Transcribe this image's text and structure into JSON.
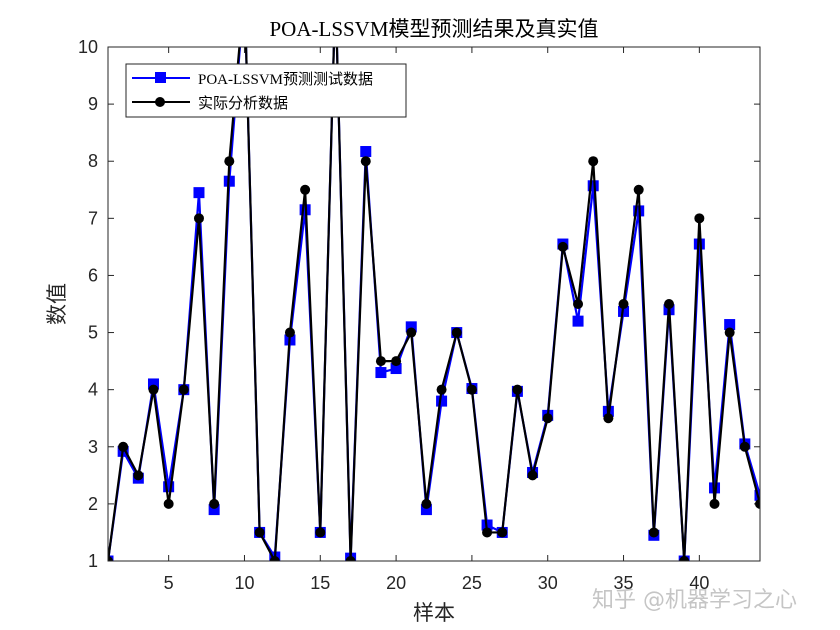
{
  "chart_data": {
    "type": "line",
    "title": "POA-LSSVM模型预测结果及真实值",
    "xlabel": "样本",
    "ylabel": "数值",
    "xlim": [
      1,
      44
    ],
    "ylim": [
      1,
      10
    ],
    "xticks": [
      5,
      10,
      15,
      20,
      25,
      30,
      35,
      40
    ],
    "yticks": [
      1,
      2,
      3,
      4,
      5,
      6,
      7,
      8,
      9,
      10
    ],
    "grid": false,
    "legend_position": "top-left",
    "x": [
      1,
      2,
      3,
      4,
      5,
      6,
      7,
      8,
      9,
      10,
      11,
      12,
      13,
      14,
      15,
      16,
      17,
      18,
      19,
      20,
      21,
      22,
      23,
      24,
      25,
      26,
      27,
      28,
      29,
      30,
      31,
      32,
      33,
      34,
      35,
      36,
      37,
      38,
      39,
      40,
      41,
      42,
      43,
      44
    ],
    "series": [
      {
        "name": "POA-LSSVM预测测试数据",
        "color": "#0000ff",
        "marker": "square",
        "values": [
          1,
          2.92,
          2.45,
          4.1,
          2.3,
          4,
          7.45,
          1.9,
          7.65,
          11,
          1.5,
          1.07,
          4.87,
          7.15,
          1.5,
          11,
          1.05,
          8.17,
          4.3,
          4.37,
          5.1,
          1.9,
          3.8,
          5,
          4.02,
          1.63,
          1.5,
          3.97,
          2.55,
          3.55,
          6.55,
          5.2,
          7.57,
          3.62,
          5.37,
          7.13,
          1.45,
          5.4,
          1,
          6.55,
          2.28,
          5.14,
          3.05,
          2.15
        ]
      },
      {
        "name": "实际分析数据",
        "color": "#000000",
        "marker": "circle",
        "values": [
          1,
          3,
          2.5,
          4,
          2,
          4,
          7,
          2,
          8,
          11,
          1.5,
          1,
          5,
          7.5,
          1.5,
          11,
          1,
          8,
          4.5,
          4.5,
          5,
          2,
          4,
          5,
          4,
          1.5,
          1.5,
          4,
          2.5,
          3.5,
          6.5,
          5.5,
          8,
          3.5,
          5.5,
          7.5,
          1.5,
          5.5,
          1,
          7,
          2,
          5,
          3,
          2
        ]
      }
    ]
  },
  "watermark": "知乎 @机器学习之心"
}
